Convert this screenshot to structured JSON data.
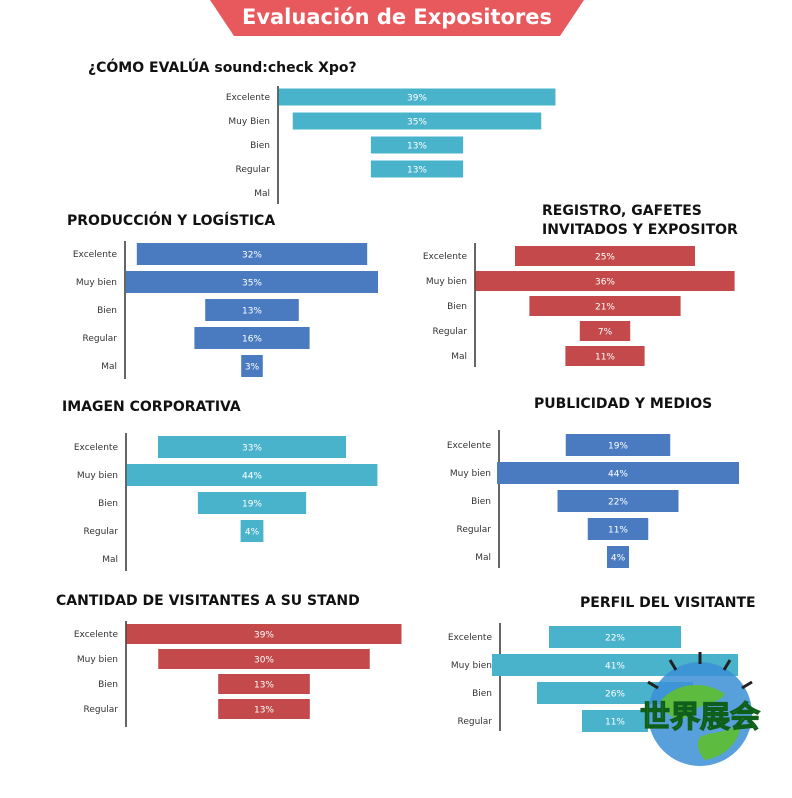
{
  "banner": {
    "title": "Evaluación de Expositores",
    "color": "#e8595e"
  },
  "chart_data": [
    {
      "type": "bar",
      "title": "¿CÓMO EVALÚA sound:check Xpo?",
      "categories": [
        "Excelente",
        "Muy Bien",
        "Bien",
        "Regular",
        "Mal"
      ],
      "values": [
        39,
        35,
        13,
        13,
        0
      ],
      "labels": [
        "39%",
        "35%",
        "13%",
        "13%",
        ""
      ],
      "color": "#4ab3cc"
    },
    {
      "type": "bar",
      "title": "PRODUCCIÓN Y LOGÍSTICA",
      "categories": [
        "Excelente",
        "Muy bien",
        "Bien",
        "Regular",
        "Mal"
      ],
      "values": [
        32,
        35,
        13,
        16,
        3
      ],
      "labels": [
        "32%",
        "35%",
        "13%",
        "16%",
        "3%"
      ],
      "color": "#4a7bc1"
    },
    {
      "type": "bar",
      "title": "REGISTRO, GAFETES\nINVITADOS Y EXPOSITOR",
      "categories": [
        "Excelente",
        "Muy bien",
        "Bien",
        "Regular",
        "Mal"
      ],
      "values": [
        25,
        36,
        21,
        7,
        11
      ],
      "labels": [
        "25%",
        "36%",
        "21%",
        "7%",
        "11%"
      ],
      "color": "#c4494b"
    },
    {
      "type": "bar",
      "title": "IMAGEN CORPORATIVA",
      "categories": [
        "Excelente",
        "Muy bien",
        "Bien",
        "Regular",
        "Mal"
      ],
      "values": [
        33,
        44,
        19,
        4,
        0
      ],
      "labels": [
        "33%",
        "44%",
        "19%",
        "4%",
        ""
      ],
      "color": "#4ab3cc"
    },
    {
      "type": "bar",
      "title": "PUBLICIDAD Y MEDIOS",
      "categories": [
        "Excelente",
        "Muy bien",
        "Bien",
        "Regular",
        "Mal"
      ],
      "values": [
        19,
        44,
        22,
        11,
        4
      ],
      "labels": [
        "19%",
        "44%",
        "22%",
        "11%",
        "4%"
      ],
      "color": "#4a7bc1"
    },
    {
      "type": "bar",
      "title": "CANTIDAD DE VISITANTES A SU STAND",
      "categories": [
        "Excelente",
        "Muy bien",
        "Bien",
        "Regular"
      ],
      "values": [
        39,
        30,
        13,
        13
      ],
      "labels": [
        "39%",
        "30%",
        "13%",
        "13%"
      ],
      "color": "#c4494b"
    },
    {
      "type": "bar",
      "title": "PERFIL DEL VISITANTE",
      "categories": [
        "Excelente",
        "Muy bien",
        "Bien",
        "Regular"
      ],
      "values": [
        22,
        41,
        26,
        11
      ],
      "labels": [
        "22%",
        "41%",
        "26%",
        "11%"
      ],
      "color": "#4ab3cc"
    }
  ],
  "logo": {
    "text": "世界展会",
    "icon": "globe-logo-icon"
  }
}
